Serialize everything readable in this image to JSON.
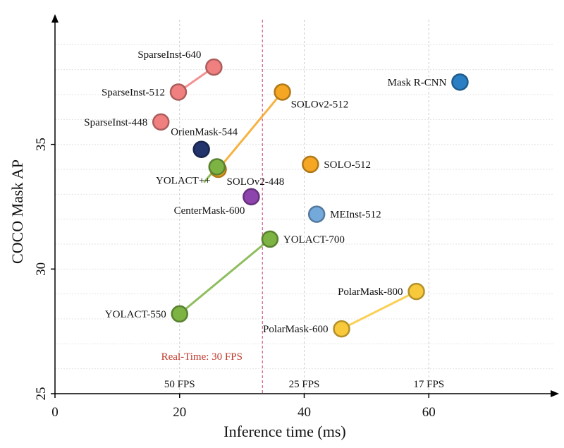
{
  "chart_data": {
    "type": "scatter",
    "xlabel": "Inference time (ms)",
    "ylabel": "COCO Mask AP",
    "xlim": [
      0,
      80
    ],
    "ylim": [
      25,
      40
    ],
    "xticks": [
      0,
      20,
      40,
      60
    ],
    "yticks": [
      25,
      30,
      35
    ],
    "grid": true,
    "points": [
      {
        "label": "SparseInst-640",
        "x": 25.5,
        "y": 38.1,
        "color": "#f08080",
        "label_pos": "left-up"
      },
      {
        "label": "SparseInst-512",
        "x": 19.8,
        "y": 37.1,
        "color": "#f08080",
        "label_pos": "left"
      },
      {
        "label": "SparseInst-448",
        "x": 17.0,
        "y": 35.9,
        "color": "#f08080",
        "label_pos": "left"
      },
      {
        "label": "Mask R-CNN",
        "x": 65.0,
        "y": 37.5,
        "color": "#2a7fc4",
        "label_pos": "left"
      },
      {
        "label": "SOLOv2-512",
        "x": 36.5,
        "y": 37.1,
        "color": "#f5a623",
        "label_pos": "right-down"
      },
      {
        "label": "OrienMask-544",
        "x": 23.5,
        "y": 34.8,
        "color": "#23336b",
        "label_pos": "up"
      },
      {
        "label": "SOLOv2-448",
        "x": 26.2,
        "y": 34.0,
        "color": "#f5a623",
        "label_pos": "right-down"
      },
      {
        "label": "YOLACT++",
        "x": 26.0,
        "y": 34.1,
        "color": "#7cb342",
        "label_pos": "left-down"
      },
      {
        "label": "SOLO-512",
        "x": 41.0,
        "y": 34.2,
        "color": "#f5a623",
        "label_pos": "right"
      },
      {
        "label": "CenterMask-600",
        "x": 31.5,
        "y": 32.9,
        "color": "#8e44ad",
        "label_pos": "left-down"
      },
      {
        "label": "MEInst-512",
        "x": 42.0,
        "y": 32.2,
        "color": "#74a9dc",
        "label_pos": "right"
      },
      {
        "label": "YOLACT-700",
        "x": 34.5,
        "y": 31.2,
        "color": "#7cb342",
        "label_pos": "right"
      },
      {
        "label": "YOLACT-550",
        "x": 20.0,
        "y": 28.2,
        "color": "#7cb342",
        "label_pos": "left"
      },
      {
        "label": "PolarMask-800",
        "x": 58.0,
        "y": 29.1,
        "color": "#f8c93a",
        "label_pos": "left"
      },
      {
        "label": "PolarMask-600",
        "x": 46.0,
        "y": 27.6,
        "color": "#f8c93a",
        "label_pos": "left"
      }
    ],
    "lines": [
      {
        "from": [
          19.8,
          37.1
        ],
        "to": [
          25.5,
          38.1
        ],
        "color": "#f08080"
      },
      {
        "from": [
          26.2,
          34.0
        ],
        "to": [
          36.5,
          37.1
        ],
        "color": "#f5a623"
      },
      {
        "from": [
          24.0,
          33.5
        ],
        "to": [
          26.0,
          34.1
        ],
        "color": "#7cb342"
      },
      {
        "from": [
          20.0,
          28.2
        ],
        "to": [
          34.5,
          31.2
        ],
        "color": "#7cb342"
      },
      {
        "from": [
          46.0,
          27.6
        ],
        "to": [
          58.0,
          29.1
        ],
        "color": "#f8c93a"
      }
    ],
    "fps_lines": [
      {
        "x": 20,
        "label": "50 FPS"
      },
      {
        "x": 40,
        "label": "25 FPS"
      },
      {
        "x": 60,
        "label": "17 FPS"
      }
    ],
    "realtime": {
      "x": 33.3,
      "label": "Real-Time: 30 FPS",
      "color": "#c2185b"
    }
  }
}
